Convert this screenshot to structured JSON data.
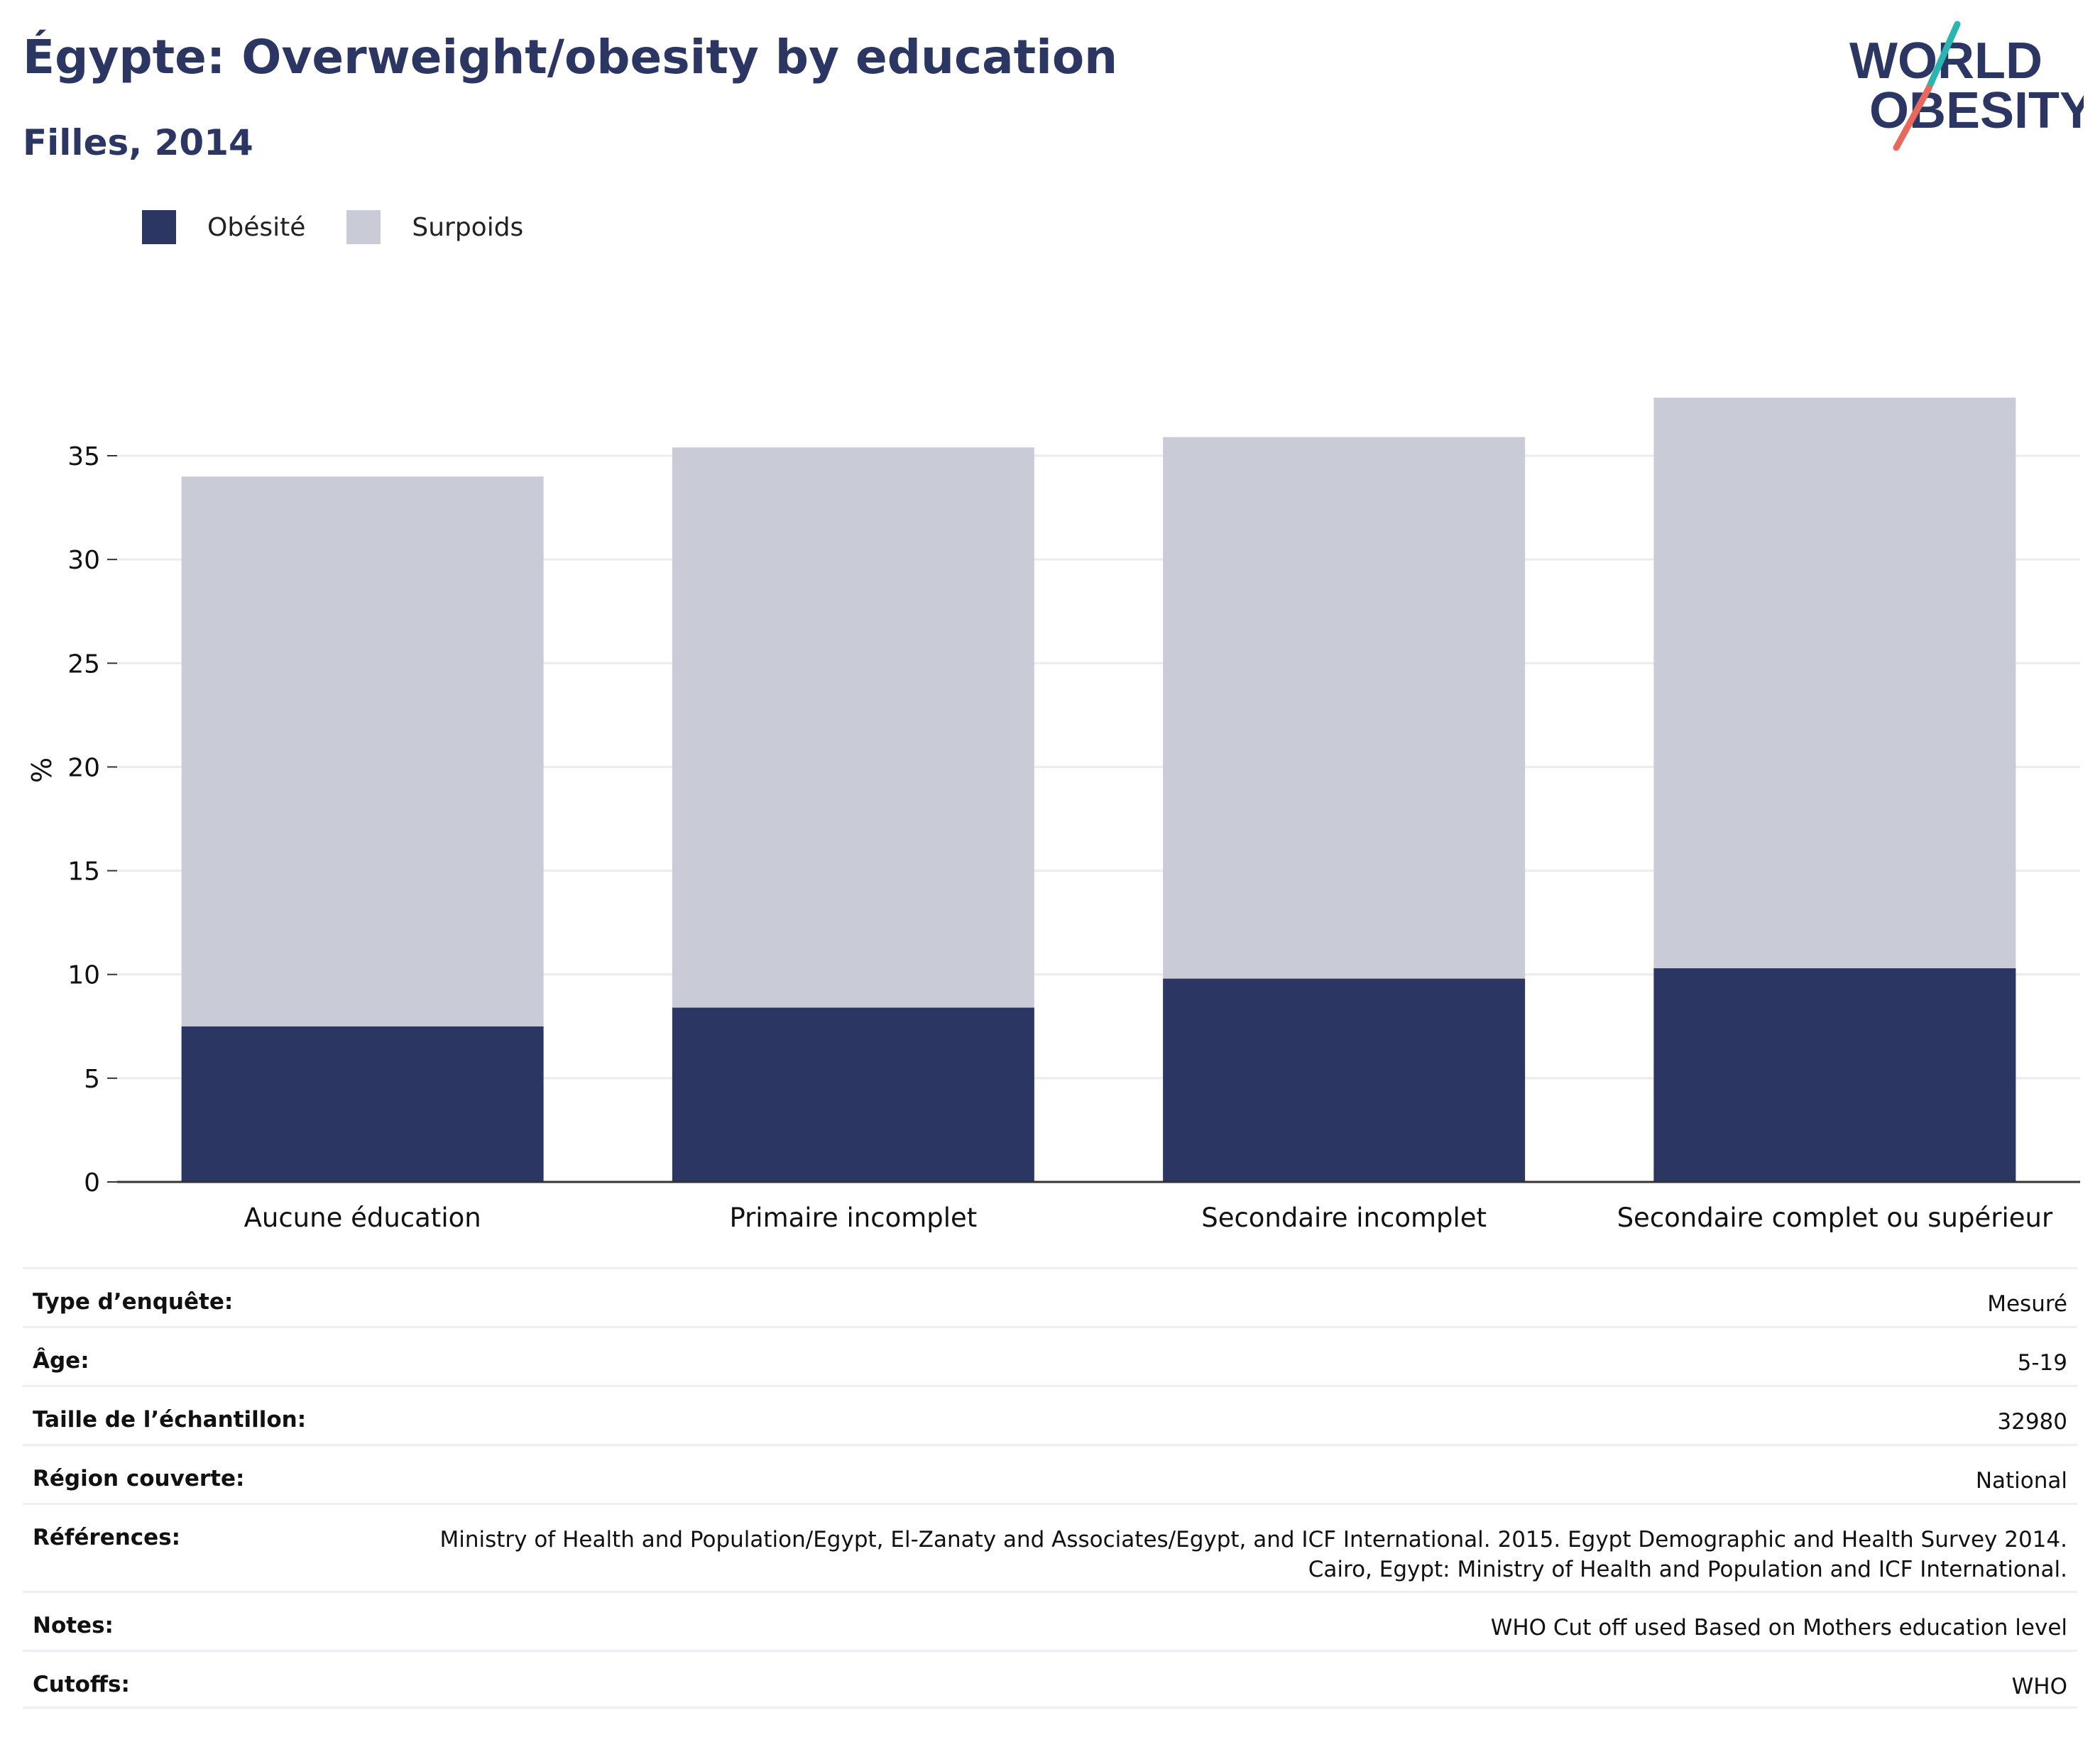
{
  "header": {
    "title": "Égypte: Overweight/obesity by education",
    "subtitle": "Filles, 2014",
    "logo_line1": "WORLD",
    "logo_line2": "OBESITY"
  },
  "legend": [
    {
      "label": "Obésité",
      "color": "#2b3663"
    },
    {
      "label": "Surpoids",
      "color": "#c9cbd7"
    }
  ],
  "chart_data": {
    "type": "bar",
    "stacked": true,
    "categories": [
      "Aucune éducation",
      "Primaire incomplet",
      "Secondaire incomplet",
      "Secondaire complet ou supérieur"
    ],
    "series": [
      {
        "name": "Obésité",
        "color": "#2b3663",
        "values": [
          7.5,
          8.4,
          9.8,
          10.3
        ]
      },
      {
        "name": "Surpoids",
        "color": "#c9cbd7",
        "values": [
          26.5,
          27.0,
          26.1,
          27.5
        ]
      }
    ],
    "ylabel": "%",
    "ylim": [
      0,
      38
    ],
    "yticks": [
      0,
      5,
      10,
      15,
      20,
      25,
      30,
      35
    ],
    "grid": true,
    "legend_position": "top-left"
  },
  "details": [
    {
      "label": "Type d’enquête:",
      "value": "Mesuré"
    },
    {
      "label": "Âge:",
      "value": "5-19"
    },
    {
      "label": "Taille de l’échantillon:",
      "value": "32980"
    },
    {
      "label": "Région couverte:",
      "value": "National"
    },
    {
      "label": "Références:",
      "value": "Ministry of Health and Population/Egypt, El-Zanaty and Associates/Egypt, and ICF International. 2015. Egypt Demographic and Health Survey 2014. Cairo, Egypt: Ministry of Health and Population and ICF International."
    },
    {
      "label": "Notes:",
      "value": "WHO Cut off used Based on Mothers education level"
    },
    {
      "label": "Cutoffs:",
      "value": "WHO"
    }
  ]
}
